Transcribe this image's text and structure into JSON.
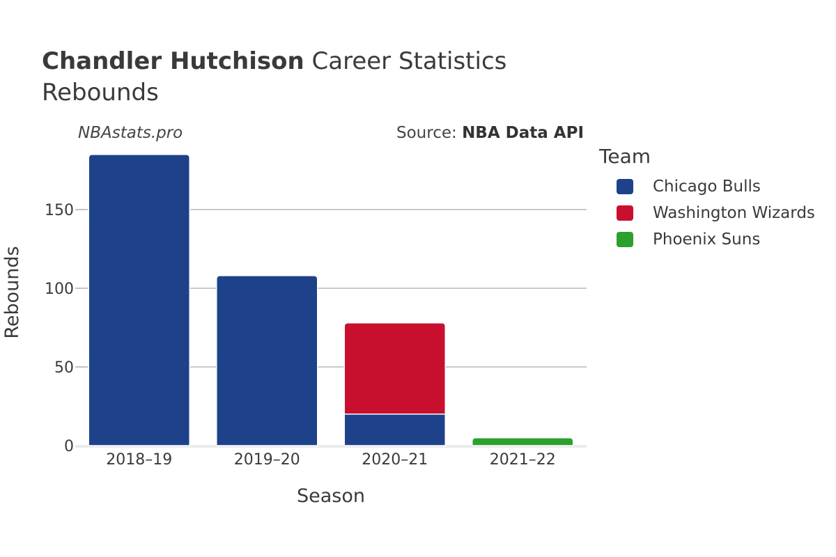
{
  "header": {
    "title_bold": "Chandler Hutchison",
    "title_rest": " Career Statistics",
    "subtitle": "Rebounds",
    "watermark": "NBAstats.pro",
    "source_prefix": "Source: ",
    "source_bold": "NBA Data API"
  },
  "legend": {
    "title": "Team",
    "items": [
      {
        "label": "Chicago Bulls",
        "color": "#1d428a"
      },
      {
        "label": "Washington Wizards",
        "color": "#c8102e"
      },
      {
        "label": "Phoenix Suns",
        "color": "#2ca02c"
      }
    ]
  },
  "chart_data": {
    "type": "bar",
    "stacked": true,
    "categories": [
      "2018–19",
      "2019–20",
      "2020–21",
      "2021–22"
    ],
    "series": [
      {
        "name": "Chicago Bulls",
        "color": "#1d428a",
        "values": [
          185,
          108,
          20,
          0
        ]
      },
      {
        "name": "Washington Wizards",
        "color": "#c8102e",
        "values": [
          0,
          0,
          58,
          0
        ]
      },
      {
        "name": "Phoenix Suns",
        "color": "#2ca02c",
        "values": [
          0,
          0,
          0,
          5
        ]
      }
    ],
    "xlabel": "Season",
    "ylabel": "Rebounds",
    "ylim": [
      0,
      190
    ],
    "yticks": [
      0,
      50,
      100,
      150
    ],
    "grid": true,
    "legend_position": "right"
  }
}
